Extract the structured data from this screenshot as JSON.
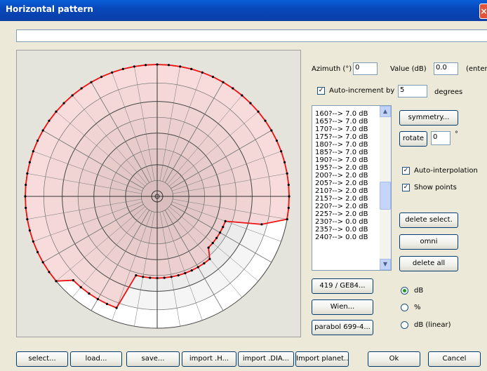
{
  "window": {
    "title": "Horizontal pattern",
    "close_glyph": "×"
  },
  "pattern": {
    "azimuth_label": "Azimuth (°)",
    "azimuth_value": "0",
    "value_label": "Value (dB)",
    "value_value": "0.0",
    "enter_label": "(enter)",
    "autoinc_label": "Auto-increment by",
    "autoinc_value": "5",
    "degrees_label": "degrees",
    "autoinc_checked": "✓",
    "list_items": [
      "160?--> 7.0 dB",
      "165?--> 7.0 dB",
      "170?--> 7.0 dB",
      "175?--> 7.0 dB",
      "180?--> 7.0 dB",
      "185?--> 7.0 dB",
      "190?--> 7.0 dB",
      "195?--> 2.0 dB",
      "200?--> 2.0 dB",
      "205?--> 2.0 dB",
      "210?--> 2.0 dB",
      "215?--> 2.0 dB",
      "220?--> 2.0 dB",
      "225?--> 2.0 dB",
      "230?--> 0.0 dB",
      "235?--> 0.0 dB",
      "240?--> 0.0 dB"
    ],
    "symmetry_label": "symmetry...",
    "rotate_label": "rotate",
    "rotate_value": "0",
    "rotate_unit": "°",
    "autointerp_label": "Auto-interpolation",
    "autointerp_checked": "✓",
    "showpoints_label": "Show points",
    "showpoints_checked": "✓",
    "delete_select_label": "delete select.",
    "omni_label": "omni",
    "delete_all_label": "delete all",
    "preset1_label": "419 / GE84...",
    "preset2_label": "Wien...",
    "preset3_label": "parabol 699-4...",
    "radio_db_label": "dB",
    "radio_pct_label": "%",
    "radio_dblin_label": "dB (linear)",
    "selected_unit": "dB"
  },
  "bottom": {
    "select_label": "select...",
    "load_label": "load...",
    "save_label": "save...",
    "import_h_label": "import .H...",
    "import_dia_label": "import .DIA...",
    "import_planet_label": "Import planet...",
    "ok_label": "Ok",
    "cancel_label": "Cancel"
  },
  "colors": {
    "line": "#ee1111",
    "fill": "#f4c4c4",
    "bg": "#ece9d8"
  }
}
